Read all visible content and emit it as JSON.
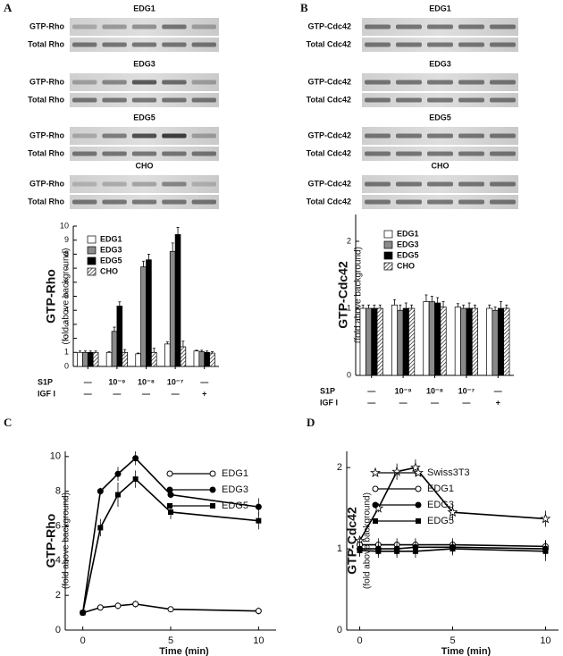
{
  "panel_labels": [
    "A",
    "B",
    "C",
    "D"
  ],
  "blots": [
    {
      "groups": [
        {
          "name": "EDG1",
          "rows": [
            "GTP-Rho",
            "Total Rho"
          ]
        },
        {
          "name": "EDG3",
          "rows": [
            "GTP-Rho",
            "Total Rho"
          ]
        },
        {
          "name": "EDG5",
          "rows": [
            "GTP-Rho",
            "Total Rho"
          ]
        },
        {
          "name": "CHO",
          "rows": [
            "GTP-Rho",
            "Total Rho"
          ]
        }
      ]
    },
    {
      "groups": [
        {
          "name": "EDG1",
          "rows": [
            "GTP-Cdc42",
            "Total Cdc42"
          ]
        },
        {
          "name": "EDG3",
          "rows": [
            "GTP-Cdc42",
            "Total Cdc42"
          ]
        },
        {
          "name": "EDG5",
          "rows": [
            "GTP-Cdc42",
            "Total Cdc42"
          ]
        },
        {
          "name": "CHO",
          "rows": [
            "GTP-Cdc42",
            "Total Cdc42"
          ]
        }
      ]
    }
  ],
  "chart_data": [
    {
      "type": "bar",
      "y_label": "GTP-Rho",
      "y_sublabel": "(fold above background)",
      "categories": [
        "—",
        "10⁻⁹",
        "10⁻⁸",
        "10⁻⁷",
        "—"
      ],
      "x_rows": [
        {
          "label": "S1P",
          "values": [
            "—",
            "10⁻⁹",
            "10⁻⁸",
            "10⁻⁷",
            "—"
          ]
        },
        {
          "label": "IGF I",
          "values": [
            "—",
            "—",
            "—",
            "—",
            "+"
          ]
        }
      ],
      "ylim": [
        0,
        10
      ],
      "yticks": [
        0,
        1,
        2,
        3,
        4,
        5,
        6,
        7,
        8,
        9,
        10
      ],
      "legend": "upper left",
      "series": [
        {
          "name": "EDG1",
          "color": "#ffffff",
          "values": [
            1,
            1,
            0.9,
            1.6,
            1.1
          ],
          "errors": [
            0.1,
            0.05,
            0.05,
            0.15,
            0.05
          ]
        },
        {
          "name": "EDG3",
          "color": "#8a8a8a",
          "values": [
            1,
            2.5,
            7.1,
            8.2,
            1.05
          ],
          "errors": [
            0.1,
            0.3,
            0.4,
            0.6,
            0.1
          ]
        },
        {
          "name": "EDG5",
          "color": "#000000",
          "values": [
            1,
            4.3,
            7.6,
            9.4,
            1.0
          ],
          "errors": [
            0.1,
            0.3,
            0.4,
            0.5,
            0.1
          ]
        },
        {
          "name": "CHO",
          "color": "#ffffff",
          "pattern": "hatch",
          "values": [
            1,
            1.0,
            1.0,
            1.4,
            0.95
          ],
          "errors": [
            0.1,
            0.2,
            0.3,
            0.4,
            0.1
          ]
        }
      ]
    },
    {
      "type": "bar",
      "y_label": "GTP-Cdc42",
      "y_sublabel": "(fold above background)",
      "categories": [
        "—",
        "10⁻⁹",
        "10⁻⁸",
        "10⁻⁷",
        "—"
      ],
      "x_rows": [
        {
          "label": "S1P",
          "values": [
            "—",
            "10⁻⁹",
            "10⁻⁸",
            "10⁻⁷",
            "—"
          ]
        },
        {
          "label": "IGF I",
          "values": [
            "—",
            "—",
            "—",
            "—",
            "+"
          ]
        }
      ],
      "ylim": [
        0,
        2.4
      ],
      "yticks": [
        0,
        1,
        2
      ],
      "legend": "upper left",
      "series": [
        {
          "name": "EDG1",
          "color": "#ffffff",
          "values": [
            1,
            1.05,
            1.1,
            1.02,
            1.0
          ],
          "errors": [
            0.05,
            0.08,
            0.1,
            0.05,
            0.05
          ]
        },
        {
          "name": "EDG3",
          "color": "#8a8a8a",
          "values": [
            1,
            0.97,
            1.1,
            1.0,
            0.97
          ],
          "errors": [
            0.05,
            0.08,
            0.08,
            0.05,
            0.05
          ]
        },
        {
          "name": "EDG5",
          "color": "#000000",
          "values": [
            1,
            1.0,
            1.08,
            1.0,
            1.0
          ],
          "errors": [
            0.05,
            0.08,
            0.08,
            0.08,
            0.1
          ]
        },
        {
          "name": "CHO",
          "color": "#ffffff",
          "pattern": "hatch",
          "values": [
            1,
            1.0,
            1.02,
            1.0,
            1.0
          ],
          "errors": [
            0.05,
            0.05,
            0.08,
            0.05,
            0.05
          ]
        }
      ]
    },
    {
      "type": "line",
      "y_label": "GTP-Rho",
      "y_sublabel": "(fold above background)",
      "x_label": "Time (min)",
      "x": [
        0,
        1,
        2,
        3,
        5,
        10
      ],
      "xlim": [
        -1,
        11
      ],
      "xticks": [
        0,
        5,
        10
      ],
      "ylim": [
        0,
        10.3
      ],
      "yticks": [
        0,
        2,
        4,
        6,
        8,
        10
      ],
      "legend": "upper right",
      "series": [
        {
          "name": "EDG1",
          "color": "#000000",
          "marker": "open-circle",
          "values": [
            1,
            1.3,
            1.4,
            1.5,
            1.2,
            1.1
          ],
          "errors": [
            0,
            0.15,
            0.2,
            0.2,
            0.1,
            0.2
          ]
        },
        {
          "name": "EDG3",
          "color": "#000000",
          "marker": "circle",
          "values": [
            1,
            8,
            9,
            9.9,
            7.8,
            7.1
          ],
          "errors": [
            0,
            0.2,
            0.4,
            0.4,
            0.2,
            0.5
          ]
        },
        {
          "name": "EDG5",
          "color": "#000000",
          "marker": "square",
          "values": [
            1,
            5.9,
            7.8,
            8.7,
            6.8,
            6.3
          ],
          "errors": [
            0,
            0.5,
            0.7,
            0.5,
            0.4,
            0.5
          ]
        }
      ]
    },
    {
      "type": "line",
      "y_label": "GTP-Cdc42",
      "y_sublabel": "(fold above background)",
      "x_label": "Time  (min)",
      "x": [
        0,
        1,
        2,
        3,
        5,
        10
      ],
      "xlim": [
        -0.7,
        10.7
      ],
      "xticks": [
        0,
        5,
        10
      ],
      "ylim": [
        0,
        2.2
      ],
      "yticks": [
        0,
        1,
        2
      ],
      "legend": "upper right",
      "series": [
        {
          "name": "Swiss3T3",
          "color": "#000000",
          "marker": "star",
          "values": [
            1.1,
            1.5,
            1.95,
            2.0,
            1.45,
            1.37
          ],
          "errors": [
            0.05,
            0.05,
            0.1,
            0.1,
            0.1,
            0.1
          ]
        },
        {
          "name": "EDG1",
          "color": "#000000",
          "marker": "open-circle",
          "values": [
            1.05,
            1.05,
            1.05,
            1.05,
            1.05,
            1.03
          ],
          "errors": [
            0.08,
            0.08,
            0.08,
            0.08,
            0.08,
            0.08
          ]
        },
        {
          "name": "EDG3",
          "color": "#000000",
          "marker": "circle",
          "values": [
            1.0,
            1.0,
            1.0,
            1.02,
            1.02,
            1.0
          ],
          "errors": [
            0.08,
            0.08,
            0.08,
            0.08,
            0.08,
            0.1
          ]
        },
        {
          "name": "EDG5",
          "color": "#000000",
          "marker": "square",
          "values": [
            0.98,
            0.97,
            0.97,
            0.97,
            1.0,
            0.97
          ],
          "errors": [
            0.08,
            0.08,
            0.08,
            0.08,
            0.08,
            0.12
          ]
        }
      ]
    }
  ]
}
